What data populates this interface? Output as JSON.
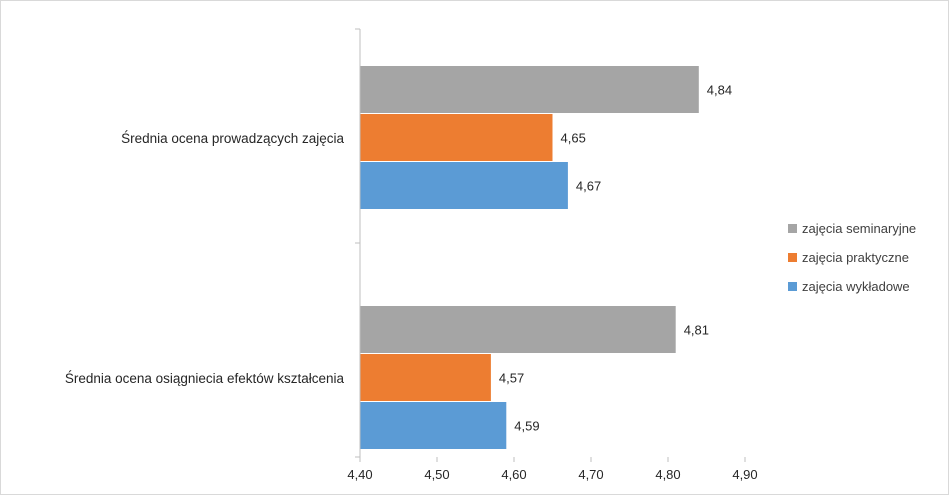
{
  "chart_data": {
    "type": "bar",
    "orientation": "horizontal",
    "categories": [
      "Średnia ocena prowadzących zajęcia",
      "Średnia ocena osiągniecia efektów kształcenia"
    ],
    "series": [
      {
        "name": "zajęcia seminaryjne",
        "color": "#a5a5a5",
        "values": [
          4.84,
          4.81
        ],
        "labels": [
          "4,84",
          "4,81"
        ]
      },
      {
        "name": "zajęcia praktyczne",
        "color": "#ed7d31",
        "values": [
          4.65,
          4.57
        ],
        "labels": [
          "4,65",
          "4,57"
        ]
      },
      {
        "name": "zajęcia wykładowe",
        "color": "#5b9bd5",
        "values": [
          4.67,
          4.59
        ],
        "labels": [
          "4,67",
          "4,59"
        ]
      }
    ],
    "xlim": [
      4.4,
      4.9
    ],
    "xticks": [
      4.4,
      4.5,
      4.6,
      4.7,
      4.8,
      4.9
    ],
    "xtick_labels": [
      "4,40",
      "4,50",
      "4,60",
      "4,70",
      "4,80",
      "4,90"
    ],
    "grid": false,
    "legend_position": "right"
  }
}
